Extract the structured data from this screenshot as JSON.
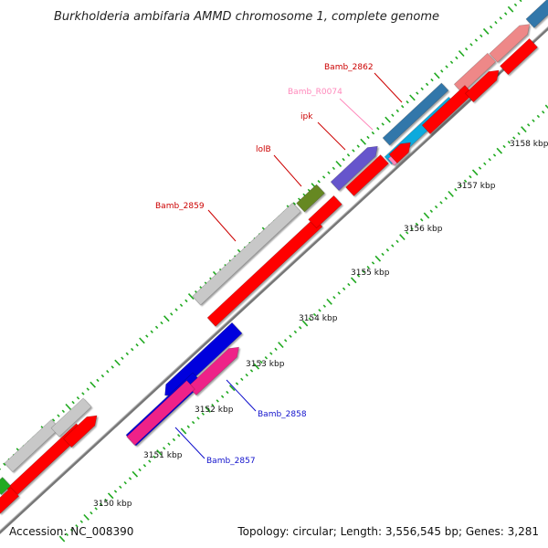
{
  "title": "Burkholderia ambifaria AMMD chromosome 1, complete genome",
  "footer": {
    "accession": "Accession: NC_008390",
    "summary": "Topology: circular; Length: 3,556,545 bp; Genes: 3,281"
  },
  "scale": {
    "unit": "kbp",
    "labels": [
      "3150 kbp",
      "3151 kbp",
      "3152 kbp",
      "3153 kbp",
      "3154 kbp",
      "3155 kbp",
      "3156 kbp",
      "3157 kbp",
      "3158 kbp"
    ]
  },
  "gene_labels": [
    {
      "text": "Bamb_2862",
      "color": "#cc0000"
    },
    {
      "text": "Bamb_R0074",
      "color": "#ff88bb"
    },
    {
      "text": "ipk",
      "color": "#cc0000"
    },
    {
      "text": "lolB",
      "color": "#cc0000"
    },
    {
      "text": "Bamb_2859",
      "color": "#cc0000"
    },
    {
      "text": "Bamb_2858",
      "color": "#1111cc"
    },
    {
      "text": "Bamb_2857",
      "color": "#1111cc"
    }
  ],
  "colors": {
    "backbone": "#777777",
    "cds": "#ff0000",
    "tick": "#22aa22",
    "blue": "#0000dd",
    "pink": "#ee2288",
    "gray": "#c8c8c8",
    "olive": "#668822",
    "purple": "#6655cc",
    "steel": "#3377aa",
    "cyan": "#11aadd",
    "salmon": "#ee8888",
    "green": "#22aa22"
  }
}
